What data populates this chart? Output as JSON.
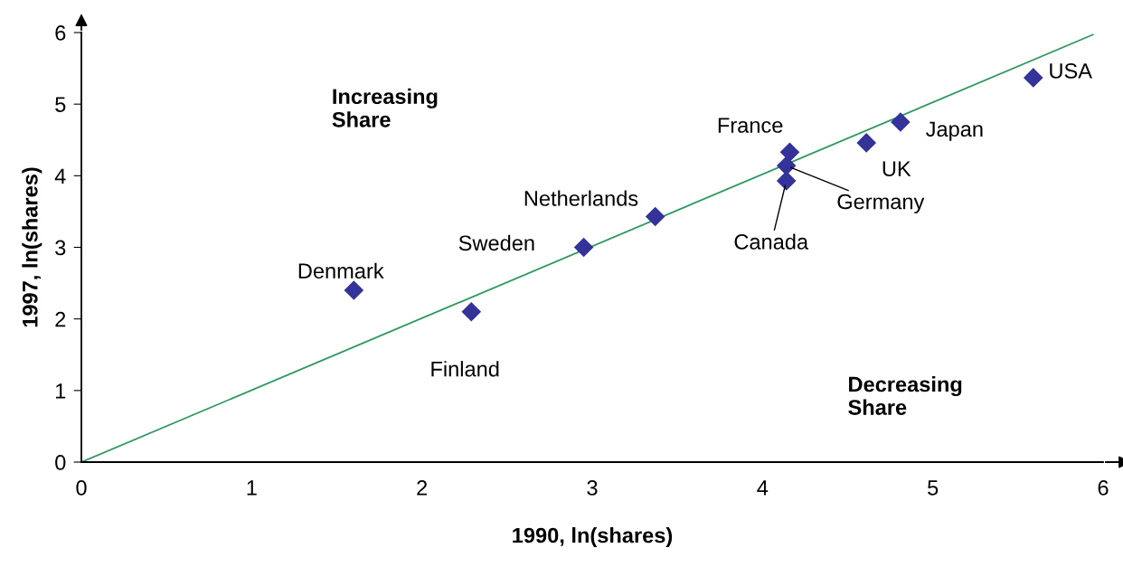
{
  "chart_data": {
    "type": "scatter",
    "xlabel": "1990, ln(shares)",
    "ylabel": "1997, ln(shares)",
    "xlim": [
      0,
      6
    ],
    "ylim": [
      0,
      6
    ],
    "xticks": [
      0,
      1,
      2,
      3,
      4,
      5,
      6
    ],
    "yticks": [
      0,
      1,
      2,
      3,
      4,
      5,
      6
    ],
    "grid": false,
    "marker": "diamond",
    "series": [
      {
        "color": "#333399",
        "x": [
          1.6,
          2.29,
          2.95,
          3.37,
          4.16,
          4.14,
          4.14,
          4.61,
          4.81,
          5.59
        ],
        "values": [
          2.4,
          2.1,
          3.0,
          3.43,
          4.33,
          4.14,
          3.93,
          4.46,
          4.75,
          5.37
        ]
      },
      {
        "type": "line",
        "marker": "none",
        "color": "#2e9960",
        "x": [
          0,
          5.94
        ],
        "values": [
          0,
          5.97
        ]
      }
    ],
    "annotations": [
      {
        "text": "Denmark",
        "x": 1.6,
        "y": 2.4
      },
      {
        "text": "Finland",
        "x": 2.29,
        "y": 2.1
      },
      {
        "text": "Sweden",
        "x": 2.95,
        "y": 3.0
      },
      {
        "text": "Netherlands",
        "x": 3.37,
        "y": 3.43
      },
      {
        "text": "France",
        "x": 4.16,
        "y": 4.33
      },
      {
        "text": "Germany",
        "x": 4.14,
        "y": 4.14
      },
      {
        "text": "Canada",
        "x": 4.14,
        "y": 3.93
      },
      {
        "text": "UK",
        "x": 4.61,
        "y": 4.46
      },
      {
        "text": "Japan",
        "x": 4.81,
        "y": 4.75
      },
      {
        "text": "USA",
        "x": 5.59,
        "y": 5.37
      },
      "Increasing\nShare",
      "Decreasing\nShare"
    ]
  }
}
